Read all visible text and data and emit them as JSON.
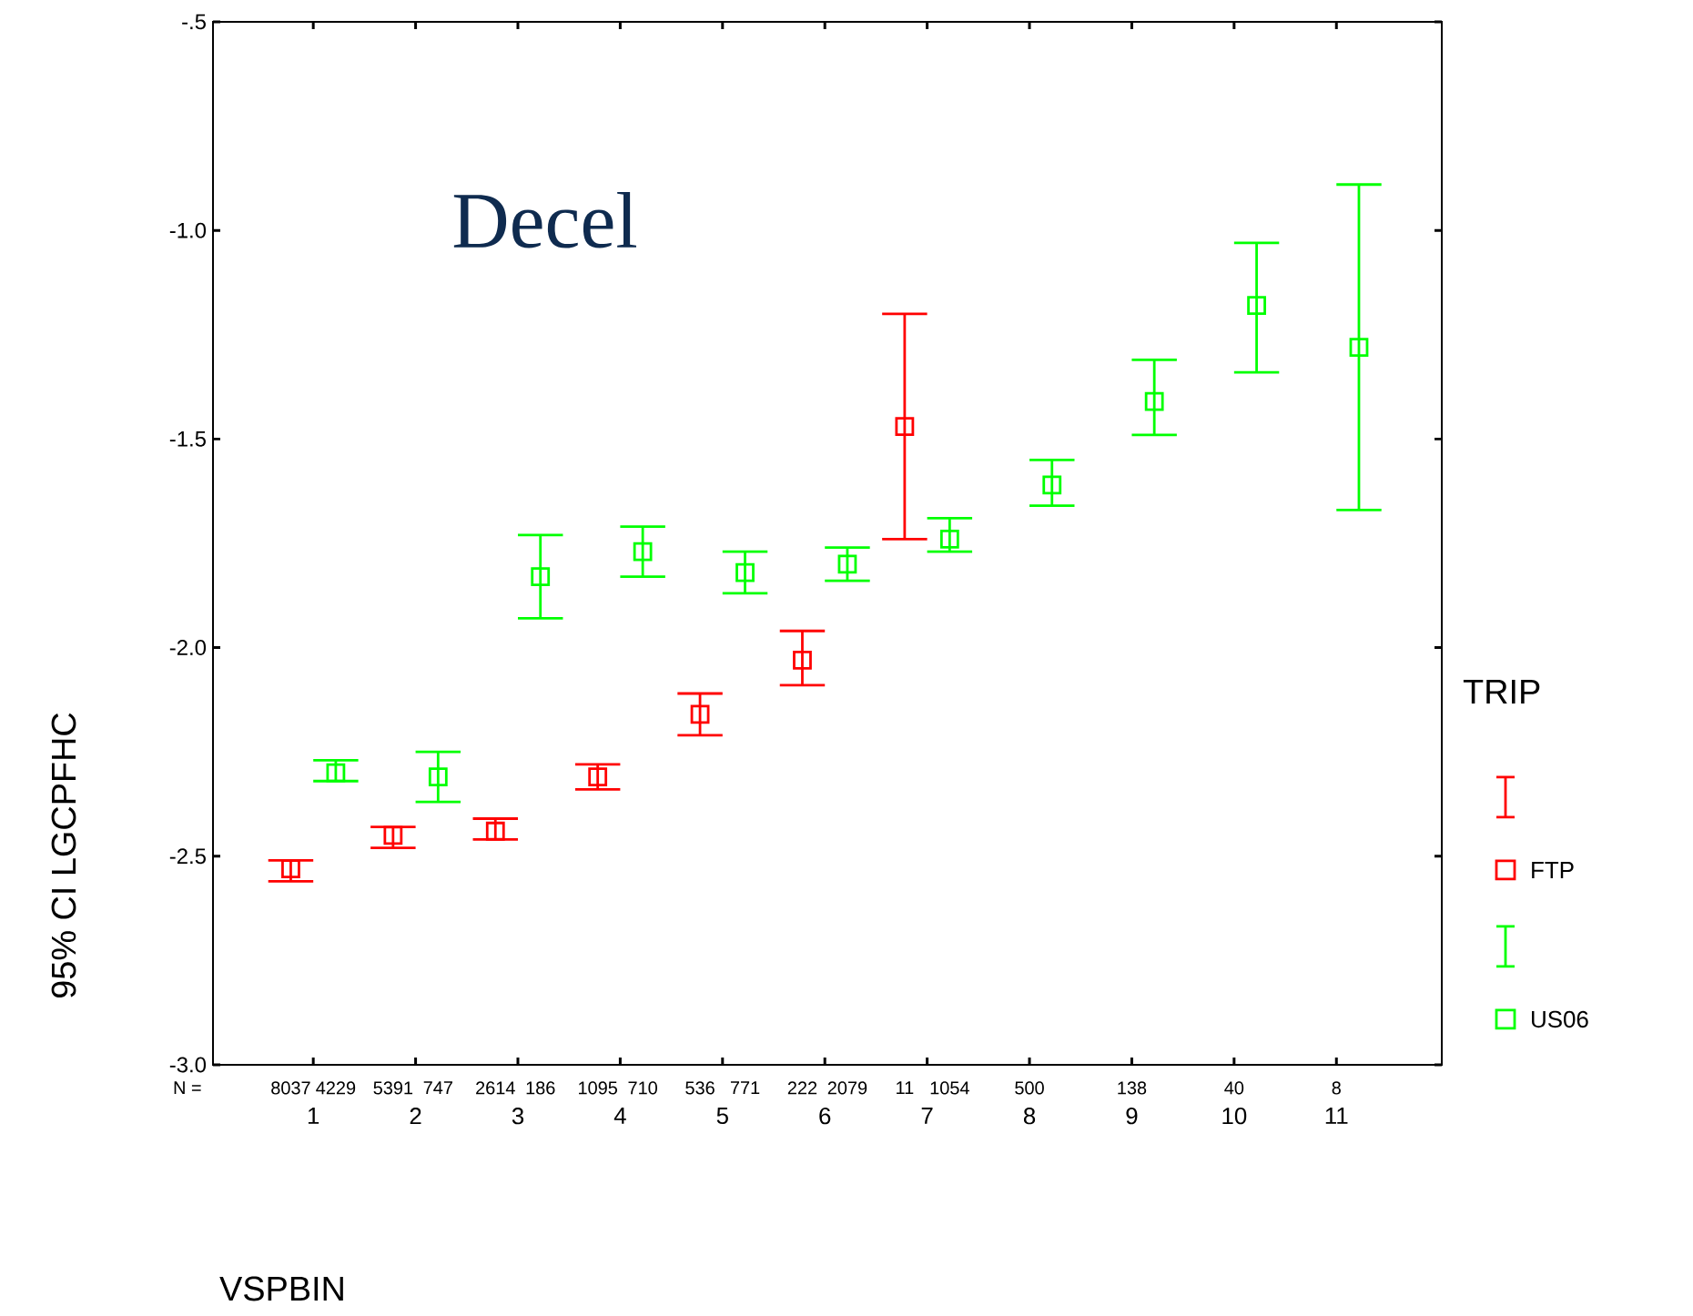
{
  "chart_data": {
    "type": "scatter",
    "title": "Decel",
    "xlabel": "VSPBIN",
    "ylabel": "95% CI LGCPFHC",
    "legend_title": "TRIP",
    "legend": "right",
    "marker": "square",
    "grid": false,
    "categories": [
      "1",
      "2",
      "3",
      "4",
      "5",
      "6",
      "7",
      "8",
      "9",
      "10",
      "11"
    ],
    "ylim": [
      -3.0,
      -0.5
    ],
    "yticks": [
      {
        "value": -3.0,
        "label": "-3.0"
      },
      {
        "value": -2.5,
        "label": "-2.5"
      },
      {
        "value": -2.0,
        "label": "-2.0"
      },
      {
        "value": -1.5,
        "label": "-1.5"
      },
      {
        "value": -1.0,
        "label": "-1.0"
      },
      {
        "value": -0.5,
        "label": "-.5"
      }
    ],
    "series": [
      {
        "name": "FTP",
        "color": "#ff0000",
        "values": [
          -2.53,
          -2.45,
          -2.44,
          -2.31,
          -2.16,
          -2.03,
          -1.47,
          null,
          null,
          null,
          null
        ],
        "errors": [
          [
            -2.56,
            -2.51
          ],
          [
            -2.48,
            -2.43
          ],
          [
            -2.46,
            -2.41
          ],
          [
            -2.34,
            -2.28
          ],
          [
            -2.21,
            -2.11
          ],
          [
            -2.09,
            -1.96
          ],
          [
            -1.74,
            -1.2
          ],
          null,
          null,
          null,
          null
        ]
      },
      {
        "name": "US06",
        "color": "#00ff00",
        "values": [
          -2.3,
          -2.31,
          -1.83,
          -1.77,
          -1.82,
          -1.8,
          -1.74,
          -1.61,
          -1.41,
          -1.18,
          -1.28
        ],
        "errors": [
          [
            -2.32,
            -2.27
          ],
          [
            -2.37,
            -2.25
          ],
          [
            -1.93,
            -1.73
          ],
          [
            -1.83,
            -1.71
          ],
          [
            -1.87,
            -1.77
          ],
          [
            -1.84,
            -1.76
          ],
          [
            -1.77,
            -1.69
          ],
          [
            -1.66,
            -1.55
          ],
          [
            -1.49,
            -1.31
          ],
          [
            -1.34,
            -1.03
          ],
          [
            -1.67,
            -0.89
          ]
        ]
      }
    ],
    "annotations": [
      "N =",
      "8037",
      "4229",
      "5391",
      "747",
      "2614",
      "186",
      "1095",
      "710",
      "536",
      "771",
      "222",
      "2079",
      "11",
      "1054",
      "500",
      "138",
      "40",
      "8"
    ]
  }
}
